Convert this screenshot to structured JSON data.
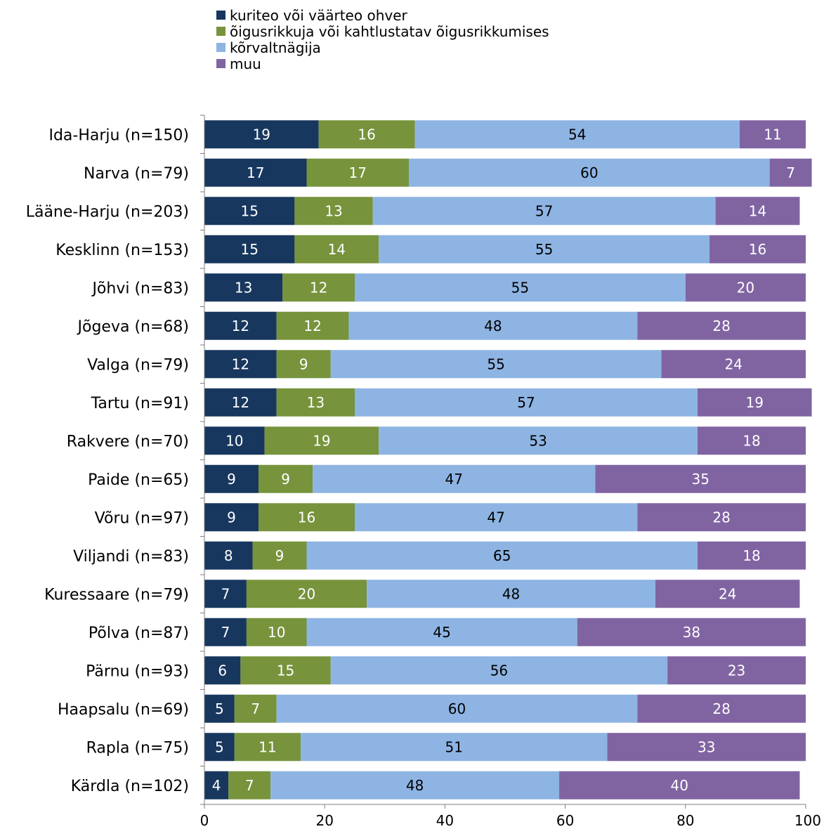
{
  "chart_data": {
    "type": "bar",
    "orientation": "horizontal",
    "stacked": true,
    "categories": [
      "Ida-Harju (n=150)",
      "Narva (n=79)",
      "Lääne-Harju (n=203)",
      "Kesklinn (n=153)",
      "Jõhvi (n=83)",
      "Jõgeva (n=68)",
      "Valga (n=79)",
      "Tartu (n=91)",
      "Rakvere (n=70)",
      "Paide (n=65)",
      "Võru (n=97)",
      "Viljandi (n=83)",
      "Kuressaare (n=79)",
      "Põlva (n=87)",
      "Pärnu (n=93)",
      "Haapsalu (n=69)",
      "Rapla (n=75)",
      "Kärdla (n=102)"
    ],
    "series": [
      {
        "name": "kuriteo või väärteo ohver",
        "color": "#17375e",
        "values": [
          19,
          17,
          15,
          15,
          13,
          12,
          12,
          12,
          10,
          9,
          9,
          8,
          7,
          7,
          6,
          5,
          5,
          4
        ]
      },
      {
        "name": "õigusrikkuja või kahtlustatav õigusrikkumises",
        "color": "#77933c",
        "values": [
          16,
          17,
          13,
          14,
          12,
          12,
          9,
          13,
          19,
          9,
          16,
          9,
          20,
          10,
          15,
          7,
          11,
          7
        ]
      },
      {
        "name": "kõrvaltnägija",
        "color": "#8eb4e3",
        "values": [
          54,
          60,
          57,
          55,
          55,
          48,
          55,
          57,
          53,
          47,
          47,
          65,
          48,
          45,
          56,
          60,
          51,
          48
        ]
      },
      {
        "name": "muu",
        "color": "#8064a2",
        "values": [
          11,
          7,
          14,
          16,
          20,
          28,
          24,
          19,
          18,
          35,
          28,
          18,
          24,
          38,
          23,
          28,
          33,
          40
        ]
      }
    ],
    "xlim": [
      0,
      100
    ],
    "xticks": [
      0,
      20,
      40,
      60,
      80,
      100
    ],
    "title": "",
    "xlabel": "",
    "ylabel": "",
    "legend_position": "top",
    "grid": false
  }
}
